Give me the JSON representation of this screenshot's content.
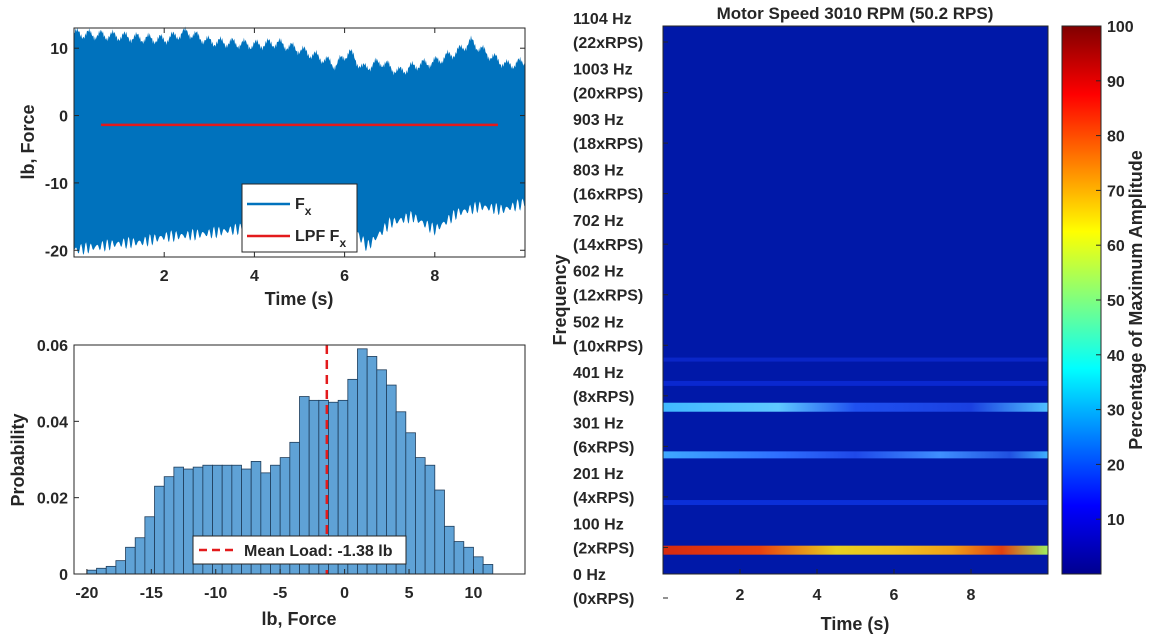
{
  "chart_data": [
    {
      "type": "line",
      "xlabel": "Time (s)",
      "ylabel": "lb, Force",
      "xlim": [
        0,
        10
      ],
      "ylim": [
        -21,
        13
      ],
      "xticks": [
        2,
        4,
        6,
        8
      ],
      "yticks": [
        -20,
        -10,
        0,
        10
      ],
      "legend_position": "bottom-center",
      "series": [
        {
          "name": "F",
          "name_sub": "x",
          "color": "#0072BD",
          "upper_envelope": [
            [
              0,
              12.2
            ],
            [
              0.5,
              12.0
            ],
            [
              1,
              11.8
            ],
            [
              1.5,
              11.5
            ],
            [
              2,
              11.3
            ],
            [
              2.5,
              12.4
            ],
            [
              3,
              11.0
            ],
            [
              3.5,
              10.8
            ],
            [
              4,
              10.5
            ],
            [
              4.5,
              10.8
            ],
            [
              5,
              9.8
            ],
            [
              5.5,
              8.5
            ],
            [
              5.8,
              7.5
            ],
            [
              6.1,
              9.5
            ],
            [
              6.4,
              7.0
            ],
            [
              6.8,
              8.0
            ],
            [
              7.2,
              6.5
            ],
            [
              7.6,
              7.5
            ],
            [
              8,
              8.0
            ],
            [
              8.5,
              9.5
            ],
            [
              8.8,
              11.0
            ],
            [
              9.2,
              9.0
            ],
            [
              9.6,
              7.5
            ],
            [
              10,
              8.0
            ]
          ],
          "lower_envelope": [
            [
              0,
              -20.0
            ],
            [
              0.5,
              -19.5
            ],
            [
              1,
              -19.0
            ],
            [
              1.5,
              -18.8
            ],
            [
              2,
              -18.0
            ],
            [
              2.5,
              -17.8
            ],
            [
              3,
              -17.5
            ],
            [
              3.5,
              -17.0
            ],
            [
              4,
              -16.5
            ],
            [
              4.5,
              -15.5
            ],
            [
              5,
              -14.8
            ],
            [
              5.5,
              -14.5
            ],
            [
              6,
              -15.0
            ],
            [
              6.5,
              -19.5
            ],
            [
              7,
              -16.0
            ],
            [
              7.5,
              -15.0
            ],
            [
              8,
              -17.0
            ],
            [
              8.5,
              -14.5
            ],
            [
              9,
              -13.5
            ],
            [
              9.5,
              -14.0
            ],
            [
              10,
              -13.0
            ]
          ]
        },
        {
          "name": "LPF F",
          "name_sub": "x",
          "color": "#E31A1C",
          "x": [
            0.6,
            9.4
          ],
          "y": [
            -1.38,
            -1.38
          ]
        }
      ]
    },
    {
      "type": "bar",
      "xlabel": "lb, Force",
      "ylabel": "Probability",
      "xlim": [
        -21,
        14
      ],
      "ylim": [
        0,
        0.06
      ],
      "xticks": [
        -20,
        -15,
        -10,
        -5,
        0,
        5,
        10
      ],
      "yticks": [
        0,
        0.02,
        0.04,
        0.06
      ],
      "bin_edges_start": -20,
      "bin_width": 1,
      "values": [
        0.001,
        0.0015,
        0.002,
        0.0035,
        0.007,
        0.0095,
        0.015,
        0.023,
        0.0255,
        0.028,
        0.0275,
        0.028,
        0.0285,
        0.0285,
        0.0285,
        0.0285,
        0.0275,
        0.0295,
        0.0265,
        0.0285,
        0.0305,
        0.0345,
        0.0465,
        0.0455,
        0.0455,
        0.045,
        0.0455,
        0.051,
        0.059,
        0.057,
        0.0535,
        0.0495,
        0.0425,
        0.037,
        0.0305,
        0.0285,
        0.022,
        0.0125,
        0.0085,
        0.007,
        0.0045,
        0.0025
      ],
      "bar_color": "#5FA2D6",
      "mean_line": {
        "x": -1.38,
        "label": "Mean Load: -1.38 lb",
        "color": "#E31A1C"
      },
      "legend_position": "bottom-center"
    },
    {
      "type": "heatmap",
      "title": "Motor Speed 3010 RPM (50.2 RPS)",
      "xlabel": "Time (s)",
      "ylabel": "Frequency",
      "xlim": [
        0,
        10
      ],
      "xticks": [
        2,
        4,
        6,
        8
      ],
      "yticks": [
        {
          "hz": "1104 Hz",
          "rps": "(22xRPS)"
        },
        {
          "hz": "1003 Hz",
          "rps": "(20xRPS)"
        },
        {
          "hz": "903 Hz",
          "rps": "(18xRPS)"
        },
        {
          "hz": "803 Hz",
          "rps": "(16xRPS)"
        },
        {
          "hz": "702 Hz",
          "rps": "(14xRPS)"
        },
        {
          "hz": "602 Hz",
          "rps": "(12xRPS)"
        },
        {
          "hz": "502 Hz",
          "rps": "(10xRPS)"
        },
        {
          "hz": "401 Hz",
          "rps": "(8xRPS)"
        },
        {
          "hz": "301 Hz",
          "rps": "(6xRPS)"
        },
        {
          "hz": "201 Hz",
          "rps": "(4xRPS)"
        },
        {
          "hz": "100 Hz",
          "rps": "(2xRPS)"
        },
        {
          "hz": "0 Hz",
          "rps": "(0xRPS)"
        }
      ],
      "colorbar": {
        "label": "Percentage of Maximum Amplitude",
        "ticks": [
          10,
          20,
          30,
          40,
          50,
          60,
          70,
          80,
          90,
          100
        ],
        "range": [
          0,
          100
        ]
      },
      "bands": [
        {
          "freq_hz": 50,
          "amplitude": 85
        },
        {
          "freq_hz": 150,
          "amplitude": 22
        },
        {
          "freq_hz": 250,
          "amplitude": 38
        },
        {
          "freq_hz": 350,
          "amplitude": 42
        },
        {
          "freq_hz": 400,
          "amplitude": 16
        },
        {
          "freq_hz": 450,
          "amplitude": 14
        }
      ]
    }
  ]
}
